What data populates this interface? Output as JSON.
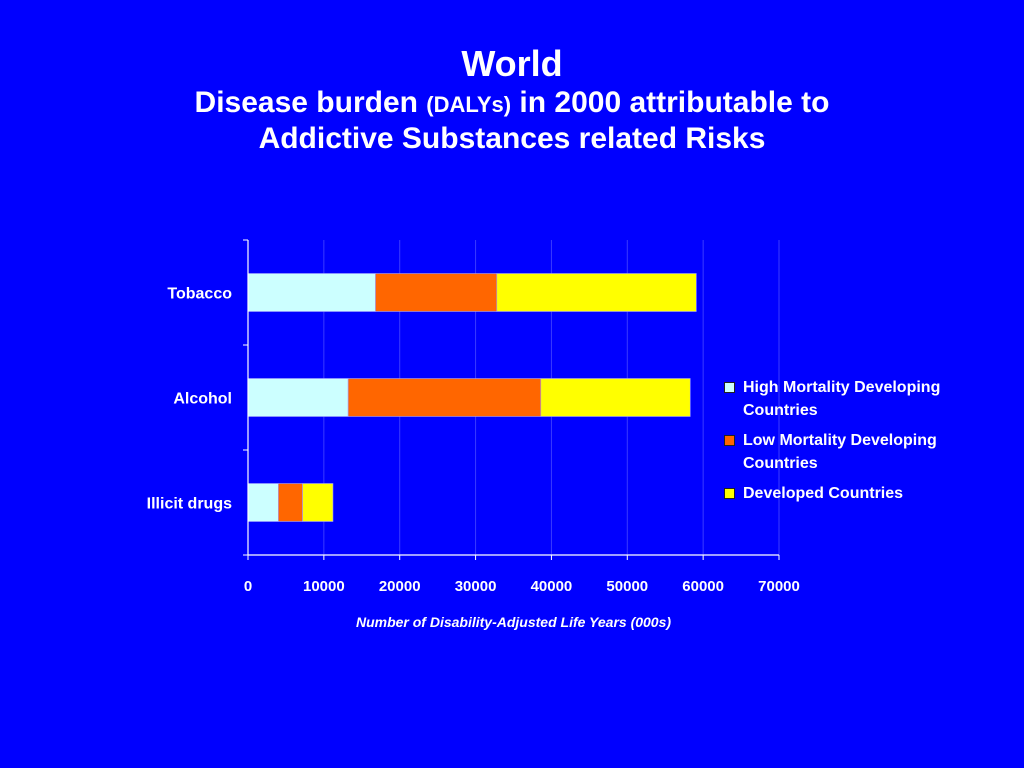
{
  "title": {
    "line1": "World",
    "line2_part1": "Disease burden ",
    "line2_part2": "(DALYs)",
    "line2_part3": " in 2000 attributable to",
    "line3": "Addictive Substances related Risks"
  },
  "chart_data": {
    "type": "bar",
    "orientation": "horizontal",
    "stacked": true,
    "categories": [
      "Tobacco",
      "Alcohol",
      "Illicit drugs"
    ],
    "series": [
      {
        "name": "High Mortality Developing Countries",
        "color": "#ccffff",
        "values": [
          16800,
          13200,
          4000
        ]
      },
      {
        "name": "Low Mortality Developing Countries",
        "color": "#ff6600",
        "values": [
          16000,
          25400,
          3200
        ]
      },
      {
        "name": "Developed Countries",
        "color": "#ffff00",
        "values": [
          26300,
          19700,
          4000
        ]
      }
    ],
    "xlabel": "Number of Disability-Adjusted Life Years (000s)",
    "ylabel": "",
    "xlim": [
      0,
      70000
    ],
    "xticks": [
      "0",
      "10000",
      "20000",
      "30000",
      "40000",
      "50000",
      "60000",
      "70000"
    ],
    "grid": "vertical",
    "legend_position": "right"
  }
}
